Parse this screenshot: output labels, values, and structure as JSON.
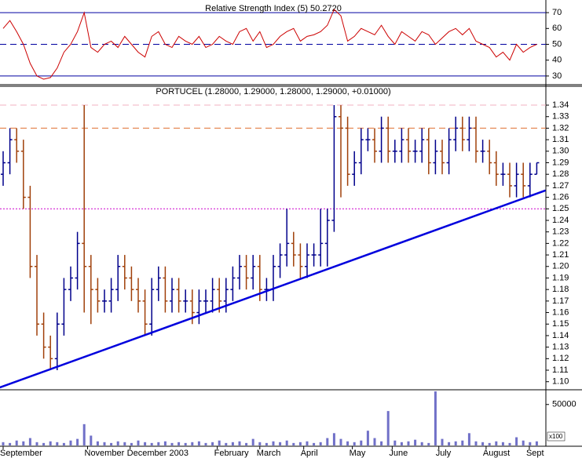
{
  "chart_data": [
    {
      "type": "line",
      "title": "Relative Strength Index (5) 50.2720",
      "color": "#cc0000",
      "values": [
        60,
        65,
        58,
        50,
        38,
        30,
        28,
        29,
        35,
        45,
        50,
        58,
        70,
        48,
        45,
        50,
        52,
        48,
        55,
        50,
        45,
        42,
        55,
        58,
        50,
        48,
        55,
        52,
        50,
        55,
        48,
        50,
        55,
        52,
        50,
        58,
        60,
        52,
        58,
        48,
        50,
        55,
        58,
        60,
        52,
        55,
        56,
        58,
        62,
        72,
        68,
        52,
        55,
        60,
        58,
        56,
        62,
        55,
        50,
        58,
        55,
        52,
        58,
        56,
        50,
        54,
        58,
        60,
        56,
        60,
        52,
        50,
        48,
        42,
        45,
        40,
        50,
        45,
        48,
        50
      ],
      "ylim": [
        25,
        75
      ],
      "yticks": [
        30,
        40,
        50,
        60,
        70
      ],
      "hlines": [
        {
          "value": 70,
          "color": "#0000a0",
          "style": "solid"
        },
        {
          "value": 50,
          "color": "#0000a0",
          "style": "dashed"
        },
        {
          "value": 30,
          "color": "#0000a0",
          "style": "solid"
        }
      ]
    },
    {
      "type": "ohlc",
      "title": "PORTUCEL (1.28000, 1.29000, 1.28000, 1.29000, +0.01000)",
      "up_color": "#00008b",
      "down_color": "#a0400a",
      "open": [
        1.28,
        1.29,
        1.31,
        1.3,
        1.26,
        1.2,
        1.15,
        1.13,
        1.12,
        1.15,
        1.18,
        1.19,
        1.22,
        1.2,
        1.18,
        1.17,
        1.17,
        1.18,
        1.2,
        1.19,
        1.18,
        1.17,
        1.15,
        1.18,
        1.19,
        1.17,
        1.18,
        1.17,
        1.17,
        1.16,
        1.17,
        1.17,
        1.18,
        1.17,
        1.18,
        1.19,
        1.2,
        1.19,
        1.2,
        1.18,
        1.18,
        1.2,
        1.21,
        1.22,
        1.21,
        1.2,
        1.21,
        1.21,
        1.22,
        1.24,
        1.33,
        1.32,
        1.28,
        1.29,
        1.31,
        1.31,
        1.3,
        1.32,
        1.3,
        1.3,
        1.31,
        1.3,
        1.3,
        1.31,
        1.29,
        1.3,
        1.29,
        1.31,
        1.32,
        1.31,
        1.32,
        1.3,
        1.3,
        1.29,
        1.28,
        1.28,
        1.27,
        1.28,
        1.27,
        1.28
      ],
      "high": [
        1.3,
        1.32,
        1.32,
        1.31,
        1.27,
        1.21,
        1.16,
        1.14,
        1.16,
        1.19,
        1.2,
        1.23,
        1.34,
        1.21,
        1.19,
        1.18,
        1.19,
        1.21,
        1.21,
        1.2,
        1.19,
        1.18,
        1.19,
        1.2,
        1.2,
        1.19,
        1.19,
        1.18,
        1.18,
        1.18,
        1.18,
        1.19,
        1.19,
        1.19,
        1.2,
        1.21,
        1.21,
        1.21,
        1.21,
        1.19,
        1.21,
        1.22,
        1.25,
        1.23,
        1.22,
        1.22,
        1.22,
        1.25,
        1.25,
        1.34,
        1.34,
        1.33,
        1.3,
        1.32,
        1.32,
        1.32,
        1.33,
        1.33,
        1.31,
        1.32,
        1.32,
        1.31,
        1.32,
        1.32,
        1.31,
        1.31,
        1.32,
        1.33,
        1.33,
        1.33,
        1.33,
        1.31,
        1.31,
        1.3,
        1.29,
        1.29,
        1.29,
        1.29,
        1.29,
        1.29
      ],
      "low": [
        1.27,
        1.28,
        1.29,
        1.25,
        1.19,
        1.14,
        1.12,
        1.11,
        1.11,
        1.14,
        1.17,
        1.18,
        1.16,
        1.15,
        1.16,
        1.16,
        1.16,
        1.17,
        1.18,
        1.17,
        1.16,
        1.14,
        1.14,
        1.17,
        1.16,
        1.16,
        1.16,
        1.16,
        1.15,
        1.15,
        1.16,
        1.16,
        1.16,
        1.16,
        1.17,
        1.18,
        1.18,
        1.18,
        1.17,
        1.17,
        1.17,
        1.19,
        1.2,
        1.2,
        1.19,
        1.19,
        1.2,
        1.2,
        1.2,
        1.23,
        1.26,
        1.27,
        1.27,
        1.28,
        1.3,
        1.29,
        1.29,
        1.29,
        1.29,
        1.29,
        1.29,
        1.29,
        1.29,
        1.28,
        1.28,
        1.28,
        1.28,
        1.3,
        1.3,
        1.3,
        1.29,
        1.29,
        1.28,
        1.27,
        1.27,
        1.26,
        1.26,
        1.26,
        1.26,
        1.28
      ],
      "close": [
        1.29,
        1.31,
        1.3,
        1.26,
        1.2,
        1.15,
        1.13,
        1.12,
        1.15,
        1.18,
        1.19,
        1.22,
        1.2,
        1.18,
        1.17,
        1.17,
        1.18,
        1.2,
        1.19,
        1.18,
        1.17,
        1.15,
        1.18,
        1.19,
        1.17,
        1.18,
        1.17,
        1.17,
        1.16,
        1.17,
        1.17,
        1.18,
        1.17,
        1.18,
        1.19,
        1.2,
        1.19,
        1.2,
        1.18,
        1.18,
        1.2,
        1.21,
        1.22,
        1.21,
        1.2,
        1.21,
        1.21,
        1.22,
        1.24,
        1.33,
        1.32,
        1.28,
        1.29,
        1.31,
        1.31,
        1.3,
        1.32,
        1.3,
        1.3,
        1.31,
        1.3,
        1.3,
        1.31,
        1.29,
        1.3,
        1.29,
        1.31,
        1.32,
        1.31,
        1.32,
        1.3,
        1.3,
        1.29,
        1.28,
        1.28,
        1.27,
        1.28,
        1.27,
        1.28,
        1.29
      ],
      "ylim": [
        1.093,
        1.355
      ],
      "yticks": [
        {
          "value": 1.1,
          "label": "1.10"
        },
        1.11,
        1.12,
        1.13,
        1.14,
        1.15,
        1.16,
        1.17,
        1.18,
        1.19,
        {
          "value": 1.2,
          "label": "1.20"
        },
        1.21,
        1.22,
        1.23,
        1.24,
        1.25,
        1.26,
        1.27,
        1.28,
        1.29,
        {
          "value": 1.3,
          "label": "1.30"
        },
        1.31,
        1.32,
        1.33,
        1.34
      ],
      "hlines": [
        {
          "value": 1.34,
          "color": "#f0b0c0",
          "style": "dashed"
        },
        {
          "value": 1.32,
          "color": "#e07030",
          "style": "dashed"
        },
        {
          "value": 1.25,
          "color": "#cc00cc",
          "style": "dotted"
        }
      ],
      "trendline": {
        "x": [
          -0.5,
          80.3
        ],
        "y": [
          1.095,
          1.266
        ],
        "color": "#0000dd"
      }
    },
    {
      "type": "bar",
      "color": "#7070c8",
      "unit_label": "x100",
      "values": [
        4000,
        3000,
        6000,
        5000,
        9000,
        4000,
        3000,
        5000,
        4000,
        3000,
        6000,
        8000,
        26000,
        12000,
        5000,
        4000,
        3000,
        5000,
        4000,
        3000,
        6000,
        4000,
        3000,
        4000,
        5000,
        3000,
        4000,
        3000,
        4000,
        5000,
        3000,
        4000,
        6000,
        3000,
        4000,
        5000,
        3000,
        8000,
        4000,
        3000,
        5000,
        4000,
        6000,
        3000,
        4000,
        5000,
        3000,
        4000,
        9000,
        15000,
        8000,
        5000,
        4000,
        6000,
        18000,
        9000,
        5000,
        42000,
        6000,
        4000,
        5000,
        7000,
        4000,
        3000,
        66000,
        8000,
        4000,
        5000,
        6000,
        15000,
        5000,
        4000,
        3000,
        5000,
        4000,
        3000,
        10000,
        6000,
        4000,
        5000
      ],
      "ylim": [
        0,
        67000
      ],
      "yticks": [
        50000
      ],
      "xticks": [
        {
          "value": 0,
          "label": "September"
        },
        {
          "value": 12.5,
          "label": "November"
        },
        {
          "value": 18.8,
          "label": "December 2003"
        },
        {
          "value": 31.7,
          "label": "February"
        },
        {
          "value": 38,
          "label": "March"
        },
        {
          "value": 44.5,
          "label": "April"
        },
        {
          "value": 51.7,
          "label": "May"
        },
        {
          "value": 57.6,
          "label": "June"
        },
        {
          "value": 64.5,
          "label": "July"
        },
        {
          "value": 71.5,
          "label": "August"
        },
        {
          "value": 77.9,
          "label": "Sept"
        }
      ]
    }
  ]
}
